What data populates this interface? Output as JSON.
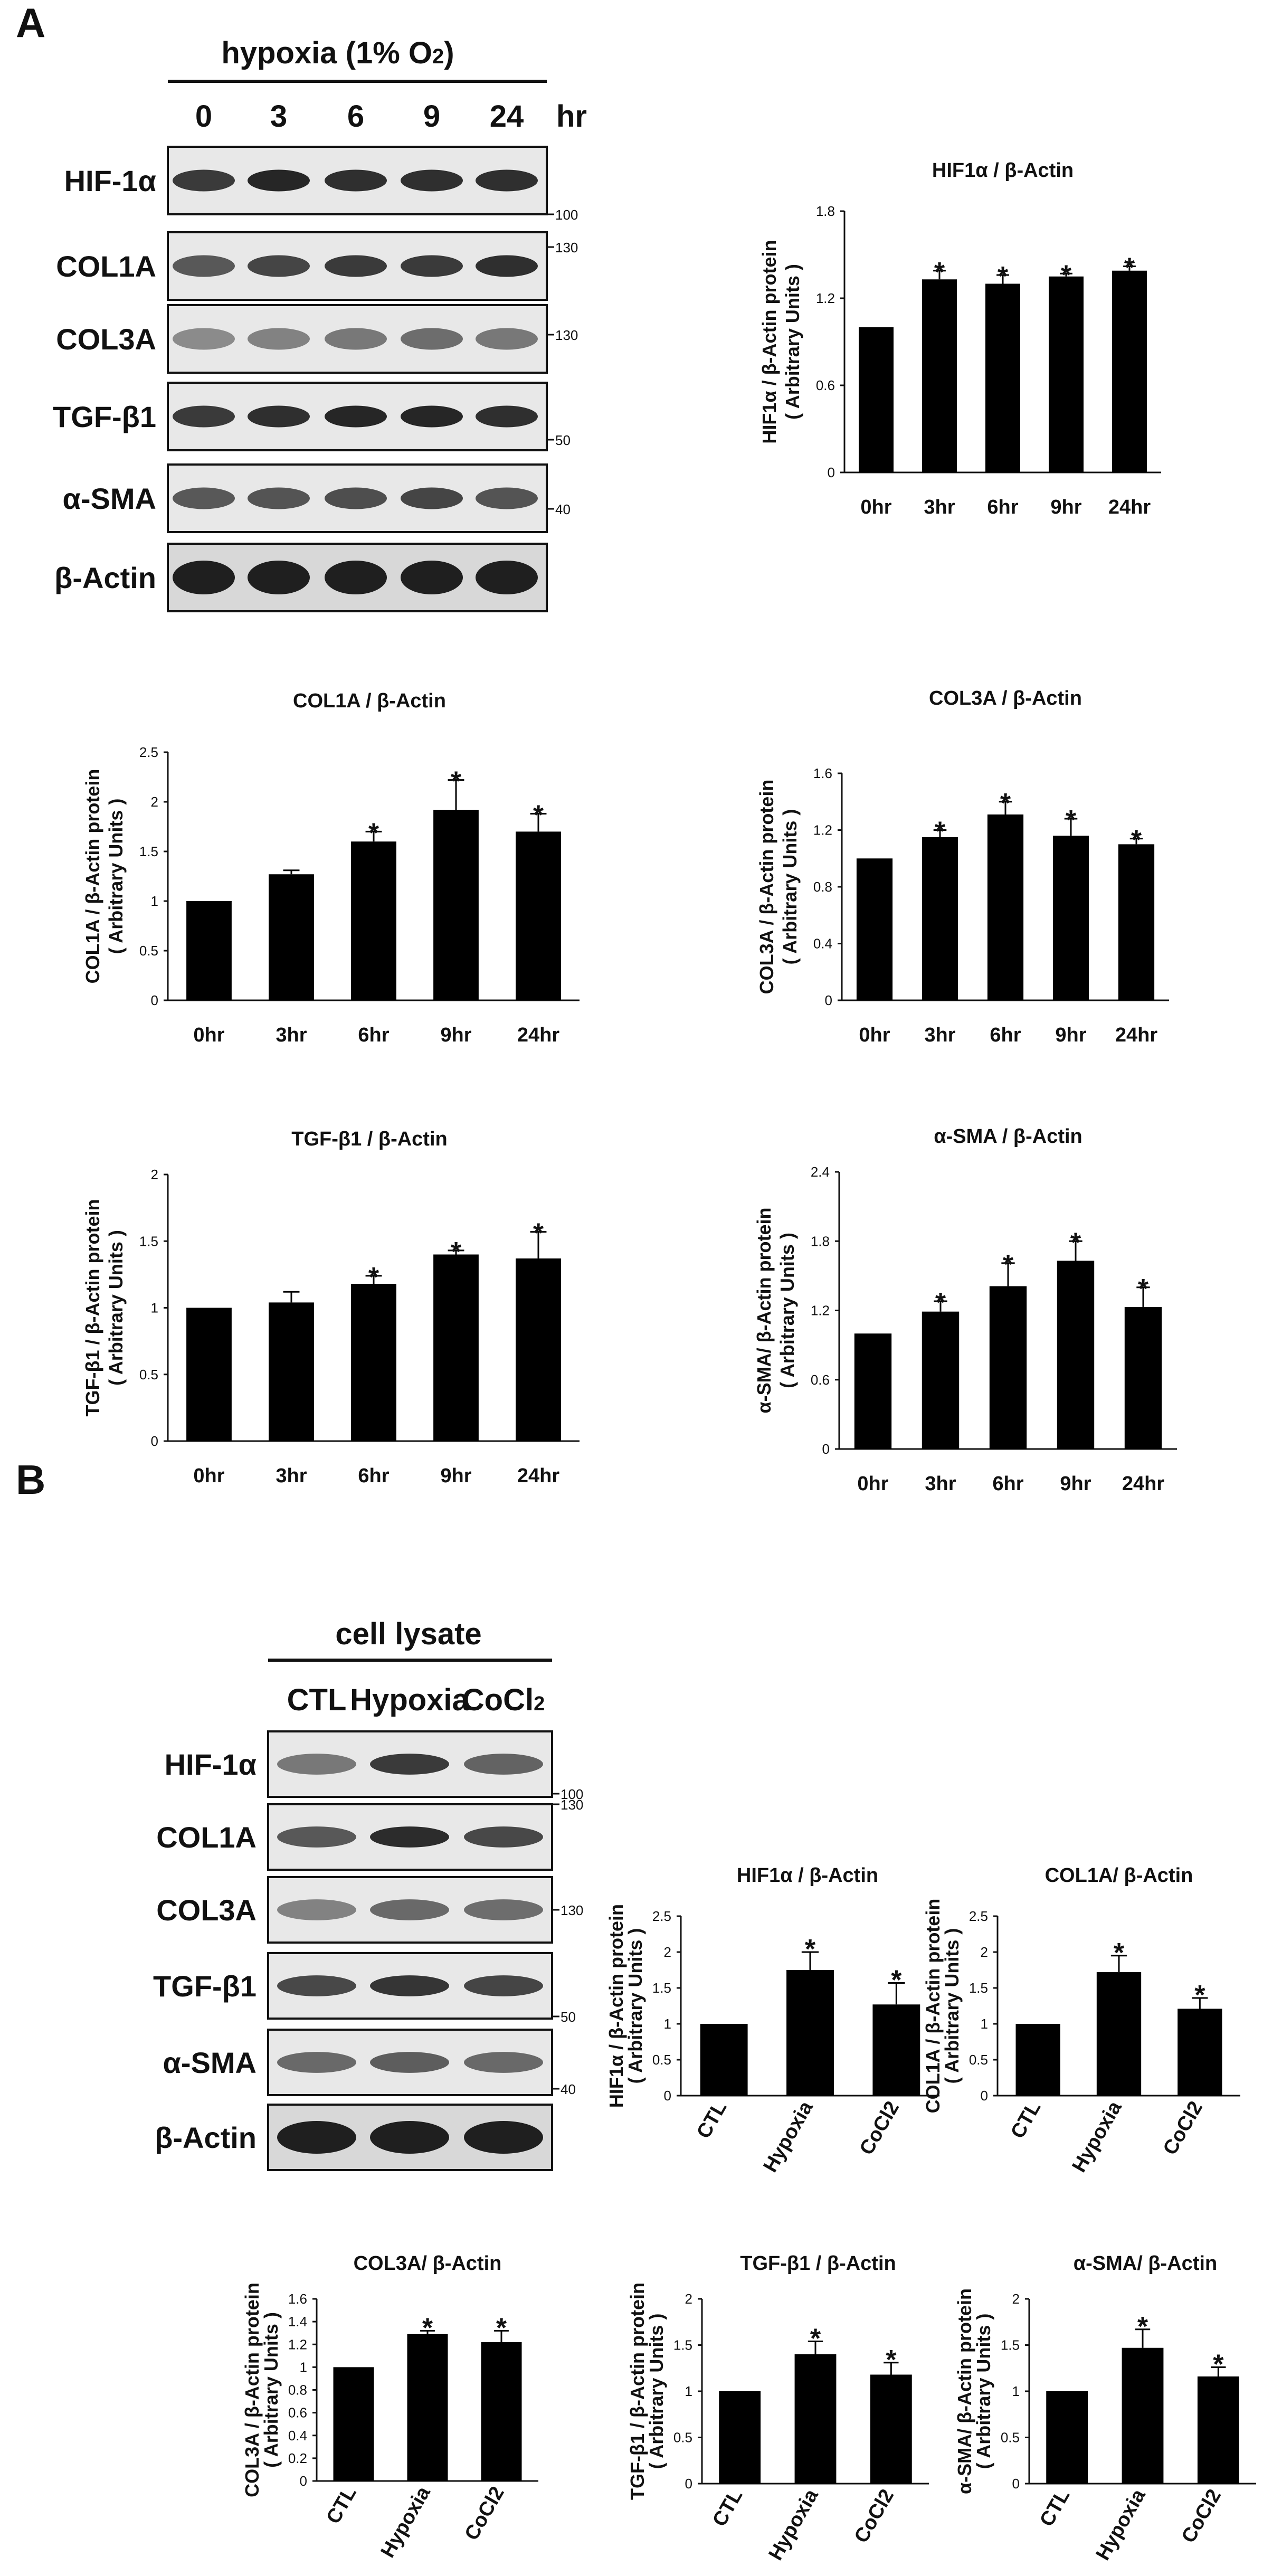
{
  "panel_a": {
    "letter": "A",
    "condition_label": "hypoxia (1% O",
    "condition_sub": "2",
    "condition_close": ")",
    "timepoints": [
      "0",
      "3",
      "6",
      "9",
      "24"
    ],
    "time_unit": "hr",
    "blot_labels": [
      "HIF-1α",
      "COL1A",
      "COL3A",
      "TGF-β1",
      "α-SMA",
      "β-Actin"
    ],
    "mw_markers": [
      "100",
      "130",
      "130",
      "50",
      "40"
    ]
  },
  "panel_b": {
    "letter": "B",
    "lysate_label": "cell lysate",
    "lanes": [
      "CTL",
      "Hypoxia",
      "CoCl"
    ],
    "lane_sub": "2",
    "blot_labels": [
      "HIF-1α",
      "COL1A",
      "COL3A",
      "TGF-β1",
      "α-SMA",
      "β-Actin"
    ],
    "mw_markers": [
      "100",
      "130",
      "130",
      "50",
      "40"
    ]
  },
  "chart_data": [
    {
      "type": "bar",
      "title": "HIF1α / β-Actin",
      "ylabel": "HIF1α / β-Actin protein",
      "ylabel2": "( Arbitrary Units )",
      "categories": [
        "0hr",
        "3hr",
        "6hr",
        "9hr",
        "24hr"
      ],
      "values": [
        1.0,
        1.33,
        1.3,
        1.35,
        1.39
      ],
      "errors": [
        0,
        0.06,
        0.06,
        0.02,
        0.03
      ],
      "significant": [
        false,
        true,
        true,
        true,
        true
      ],
      "star": "*",
      "ylim": [
        0,
        1.8
      ],
      "yticks": [
        "0",
        "0.6",
        "1.2",
        "1.8"
      ]
    },
    {
      "type": "bar",
      "title": "COL1A / β-Actin",
      "ylabel": "COL1A / β-Actin protein",
      "ylabel2": "( Arbitrary Units )",
      "categories": [
        "0hr",
        "3hr",
        "6hr",
        "9hr",
        "24hr"
      ],
      "values": [
        1.0,
        1.27,
        1.6,
        1.92,
        1.7
      ],
      "errors": [
        0,
        0.04,
        0.1,
        0.3,
        0.18
      ],
      "significant": [
        false,
        false,
        true,
        true,
        true
      ],
      "star": "*",
      "ylim": [
        0,
        2.5
      ],
      "yticks": [
        "0",
        "0.5",
        "1",
        "1.5",
        "2",
        "2.5"
      ]
    },
    {
      "type": "bar",
      "title": "COL3A / β-Actin",
      "ylabel": "COL3A / β-Actin protein",
      "ylabel2": "( Arbitrary Units )",
      "categories": [
        "0hr",
        "3hr",
        "6hr",
        "9hr",
        "24hr"
      ],
      "values": [
        1.0,
        1.15,
        1.31,
        1.16,
        1.1
      ],
      "errors": [
        0,
        0.05,
        0.09,
        0.12,
        0.04
      ],
      "significant": [
        false,
        true,
        true,
        true,
        true
      ],
      "star": "*",
      "ylim": [
        0,
        1.6
      ],
      "yticks": [
        "0",
        "0.4",
        "0.8",
        "1.2",
        "1.6"
      ]
    },
    {
      "type": "bar",
      "title": "TGF-β1  / β-Actin",
      "ylabel": "TGF-β1 / β-Actin protein",
      "ylabel2": "( Arbitrary Units )",
      "categories": [
        "0hr",
        "3hr",
        "6hr",
        "9hr",
        "24hr"
      ],
      "values": [
        1.0,
        1.04,
        1.18,
        1.4,
        1.37
      ],
      "errors": [
        0,
        0.08,
        0.06,
        0.03,
        0.2
      ],
      "significant": [
        false,
        false,
        true,
        true,
        true
      ],
      "star": "*",
      "ylim": [
        0,
        2
      ],
      "yticks": [
        "0",
        "0.5",
        "1",
        "1.5",
        "2"
      ]
    },
    {
      "type": "bar",
      "title": "α-SMA / β-Actin",
      "ylabel": "α-SMA/ β-Actin protein",
      "ylabel2": "( Arbitrary Units )",
      "categories": [
        "0hr",
        "3hr",
        "6hr",
        "9hr",
        "24hr"
      ],
      "values": [
        1.0,
        1.19,
        1.41,
        1.63,
        1.23
      ],
      "errors": [
        0,
        0.09,
        0.2,
        0.17,
        0.17
      ],
      "significant": [
        false,
        true,
        true,
        true,
        true
      ],
      "star": "*",
      "ylim": [
        0,
        2.4
      ],
      "yticks": [
        "0",
        "0.6",
        "1.2",
        "1.8",
        "2.4"
      ]
    },
    {
      "type": "bar",
      "title": "HIF1α  / β-Actin",
      "ylabel": "HIF1α / β-Actin protein",
      "ylabel2": "( Arbitrary Units )",
      "categories": [
        "CTL",
        "Hypoxia",
        "CoCl2"
      ],
      "values": [
        1.0,
        1.75,
        1.27
      ],
      "errors": [
        0,
        0.25,
        0.3
      ],
      "significant": [
        false,
        true,
        true
      ],
      "star": "*",
      "ylim": [
        0,
        2.5
      ],
      "yticks": [
        "0",
        "0.5",
        "1",
        "1.5",
        "2",
        "2.5"
      ]
    },
    {
      "type": "bar",
      "title": "COL1A/ β-Actin",
      "ylabel": "COL1A / β-Actin protein",
      "ylabel2": "( Arbitrary Units )",
      "categories": [
        "CTL",
        "Hypoxia",
        "CoCl2"
      ],
      "values": [
        1.0,
        1.72,
        1.21
      ],
      "errors": [
        0,
        0.23,
        0.15
      ],
      "significant": [
        false,
        true,
        true
      ],
      "star": "*",
      "ylim": [
        0,
        2.5
      ],
      "yticks": [
        "0",
        "0.5",
        "1",
        "1.5",
        "2",
        "2.5"
      ]
    },
    {
      "type": "bar",
      "title": "COL3A/ β-Actin",
      "ylabel": "COL3A / β-Actin protein",
      "ylabel2": "( Arbitrary Units )",
      "categories": [
        "CTL",
        "Hypoxia",
        "CoCl2"
      ],
      "values": [
        1.0,
        1.29,
        1.22
      ],
      "errors": [
        0,
        0.03,
        0.1
      ],
      "significant": [
        false,
        true,
        true
      ],
      "star": "*",
      "ylim": [
        0,
        1.6
      ],
      "yticks": [
        "0",
        "0.2",
        "0.4",
        "0.6",
        "0.8",
        "1",
        "1.2",
        "1.4",
        "1.6"
      ]
    },
    {
      "type": "bar",
      "title": "TGF-β1 / β-Actin",
      "ylabel": "TGF-β1 / β-Actin protein",
      "ylabel2": "( Arbitrary Units )",
      "categories": [
        "CTL",
        "Hypoxia",
        "CoCl2"
      ],
      "values": [
        1.0,
        1.4,
        1.18
      ],
      "errors": [
        0,
        0.14,
        0.13
      ],
      "significant": [
        false,
        true,
        true
      ],
      "star": "*",
      "ylim": [
        0,
        2
      ],
      "yticks": [
        "0",
        "0.5",
        "1",
        "1.5",
        "2"
      ]
    },
    {
      "type": "bar",
      "title": "α-SMA/ β-Actin",
      "ylabel": "α-SMA/ β-Actin protein",
      "ylabel2": "( Arbitrary Units )",
      "categories": [
        "CTL",
        "Hypoxia",
        "CoCl2"
      ],
      "values": [
        1.0,
        1.47,
        1.16
      ],
      "errors": [
        0,
        0.2,
        0.1
      ],
      "significant": [
        false,
        true,
        true
      ],
      "star": "*",
      "ylim": [
        0,
        2
      ],
      "yticks": [
        "0",
        "0.5",
        "1",
        "1.5",
        "2"
      ]
    }
  ]
}
